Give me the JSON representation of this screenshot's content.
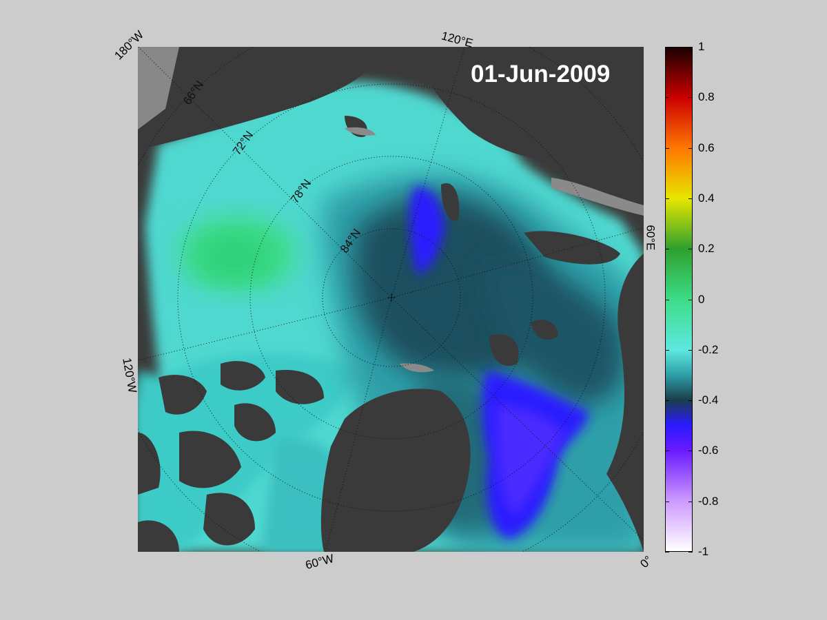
{
  "date_label": "01-Jun-2009",
  "edge_labels": {
    "lon_180w": "180°W",
    "lon_120e": "120°E",
    "lon_60e": "60°E",
    "lon_120w": "120°W",
    "lon_60w": "60°W",
    "lon_0": "0°"
  },
  "lat_labels": [
    "66°N",
    "72°N",
    "78°N",
    "84°N"
  ],
  "colorbar": {
    "ticks": [
      "1",
      "0.8",
      "0.6",
      "0.4",
      "0.2",
      "0",
      "-0.2",
      "-0.4",
      "-0.6",
      "-0.8",
      "-1"
    ],
    "range": [
      -1,
      1
    ],
    "colors": {
      "1.0": "#1a0000",
      "0.8": "#cc0000",
      "0.6": "#ff7700",
      "0.4": "#e6e600",
      "0.2": "#2ea02e",
      "0.0": "#3ddc88",
      "-0.2": "#5ee8e0",
      "-0.3": "#2e9fa8",
      "-0.4": "#1a3d4a",
      "-0.5": "#2a1aff",
      "-0.6": "#6a1aff",
      "-0.8": "#cc99ff",
      "-1.0": "#ffffff"
    }
  },
  "colors": {
    "land": "#3a3a3a",
    "land_outside": "#888888",
    "background": "#cccccc"
  }
}
